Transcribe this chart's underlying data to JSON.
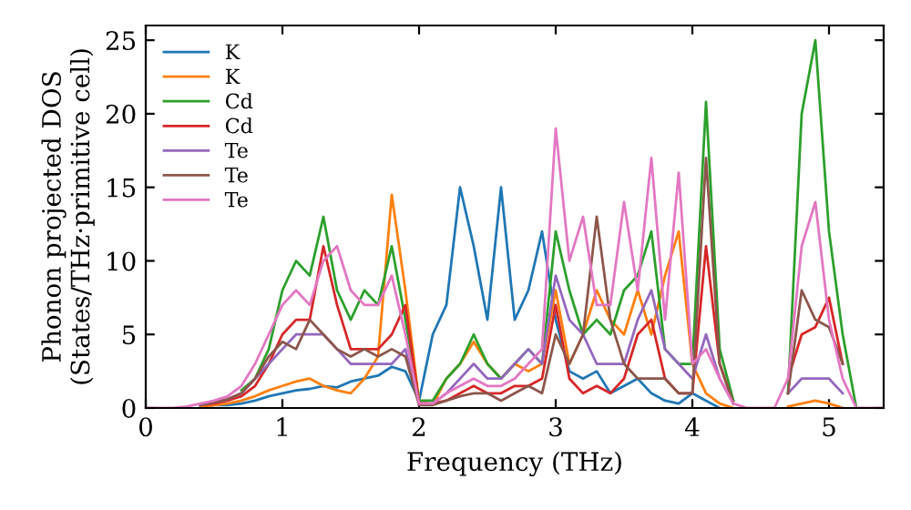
{
  "chart_data": {
    "type": "line",
    "xlabel": "Frequency (THz)",
    "ylabel": "Phonon projected DOS\n(States/THz·primitive cell)",
    "x": [
      0,
      0.1,
      0.2,
      0.3,
      0.4,
      0.5,
      0.6,
      0.7,
      0.8,
      0.9,
      1,
      1.1,
      1.2,
      1.3,
      1.4,
      1.5,
      1.6,
      1.7,
      1.8,
      1.9,
      2,
      2.1,
      2.2,
      2.3,
      2.4,
      2.5,
      2.6,
      2.7,
      2.8,
      2.9,
      3,
      3.1,
      3.2,
      3.3,
      3.4,
      3.5,
      3.6,
      3.7,
      3.8,
      3.9,
      4,
      4.1,
      4.2,
      4.3,
      4.4,
      4.5,
      4.6,
      4.7,
      4.8,
      4.9,
      5,
      5.1,
      5.2,
      5.3,
      5.4
    ],
    "series": [
      {
        "name": "K",
        "color": "#1f77b4",
        "values": [
          null,
          null,
          null,
          null,
          0.1,
          0.2,
          0.2,
          0.3,
          0.5,
          0.8,
          1.0,
          1.2,
          1.3,
          1.5,
          1.4,
          1.8,
          2.0,
          2.2,
          2.8,
          2.5,
          0.5,
          5,
          7,
          15,
          11,
          6,
          15,
          6,
          8,
          12,
          6,
          2.5,
          2,
          2.5,
          1,
          1.5,
          2,
          1,
          0.5,
          0.3,
          1,
          0.5,
          0,
          null,
          null,
          null,
          null,
          null,
          null,
          null,
          null,
          null,
          null,
          null,
          null
        ]
      },
      {
        "name": "K",
        "color": "#ff7f0e",
        "values": [
          null,
          null,
          null,
          null,
          0.1,
          0.2,
          0.3,
          0.5,
          0.8,
          1.2,
          1.5,
          1.8,
          2.0,
          1.5,
          1.2,
          1.0,
          2.0,
          3.5,
          14.5,
          8,
          0.5,
          0.2,
          2,
          3,
          4.5,
          3,
          2,
          3,
          2.5,
          3,
          8,
          3,
          5,
          8,
          6,
          5,
          8,
          5,
          9,
          12,
          3,
          1,
          0.3,
          0,
          null,
          null,
          null,
          0.1,
          0.3,
          0.5,
          0.3,
          0,
          null,
          null,
          null
        ]
      },
      {
        "name": "Cd",
        "color": "#2ca02c",
        "values": [
          null,
          null,
          null,
          null,
          null,
          null,
          null,
          1.2,
          2,
          4,
          8,
          10,
          9,
          13,
          8,
          6,
          8,
          7,
          11,
          6,
          0.5,
          0.5,
          2,
          3,
          5,
          3,
          2,
          3,
          4,
          3,
          12,
          8,
          5,
          6,
          5,
          8,
          9,
          12,
          4,
          3,
          3,
          20.8,
          4,
          0.5,
          null,
          null,
          null,
          1,
          20,
          25,
          12,
          5,
          0,
          null,
          null
        ]
      },
      {
        "name": "Cd",
        "color": "#d62728",
        "values": [
          null,
          null,
          null,
          null,
          0.2,
          0.3,
          0.5,
          0.8,
          1.5,
          3,
          5,
          6,
          6,
          11,
          7,
          4,
          4,
          4,
          5,
          7,
          0.3,
          0.3,
          0.5,
          1,
          1.5,
          1,
          1,
          1.5,
          1.5,
          2,
          7,
          2,
          1,
          1.5,
          1,
          2,
          5,
          6,
          2,
          1,
          1,
          11,
          3,
          0.3,
          null,
          null,
          null,
          2,
          5,
          5.5,
          7.5,
          3,
          null,
          null,
          null
        ]
      },
      {
        "name": "Te",
        "color": "#9467bd",
        "values": [
          null,
          null,
          null,
          null,
          0.2,
          0.4,
          0.6,
          1,
          2,
          3,
          4,
          5,
          5,
          5,
          4,
          3,
          3,
          3,
          3,
          4,
          0.3,
          0.3,
          1,
          2,
          3,
          2,
          2,
          3,
          4,
          3,
          9,
          6,
          5,
          3,
          3,
          3,
          6,
          8,
          4,
          3,
          2,
          5,
          2,
          0.3,
          null,
          null,
          null,
          1,
          2,
          2,
          2,
          1,
          null,
          null,
          null
        ]
      },
      {
        "name": "Te",
        "color": "#8c564b",
        "values": [
          null,
          null,
          null,
          null,
          0.2,
          0.4,
          0.6,
          1,
          2,
          3.5,
          4.5,
          4,
          6,
          5,
          4,
          3.5,
          4,
          3.5,
          4,
          3.5,
          0.2,
          0.2,
          0.5,
          0.8,
          1,
          1,
          0.5,
          1,
          1.5,
          1,
          5,
          3,
          5,
          13,
          6,
          3,
          2,
          2,
          2,
          1,
          1,
          17,
          3,
          0.3,
          null,
          null,
          null,
          1,
          8,
          6,
          5.5,
          3,
          null,
          null,
          null
        ]
      },
      {
        "name": "Te",
        "color": "#e377c2",
        "values": [
          0,
          0,
          0,
          0.1,
          0.3,
          0.5,
          0.8,
          1.5,
          3,
          5,
          7,
          8,
          7,
          10,
          11,
          8,
          7,
          7,
          9,
          5,
          0.3,
          0.3,
          1,
          1.5,
          2,
          1.5,
          1.5,
          2,
          3,
          4,
          19,
          10,
          13,
          7,
          7,
          14,
          8,
          17,
          6,
          16,
          3,
          4,
          2,
          0.3,
          0,
          0,
          0,
          2,
          11,
          14,
          6,
          2,
          0,
          0,
          0
        ]
      }
    ],
    "xlim": [
      0,
      5.4
    ],
    "ylim": [
      0,
      26
    ],
    "xticks": [
      0,
      1,
      2,
      3,
      4,
      5
    ],
    "yticks": [
      0,
      5,
      10,
      15,
      20,
      25
    ],
    "grid": false,
    "legend": "top left",
    "marker": "none",
    "line_style": "solid"
  }
}
